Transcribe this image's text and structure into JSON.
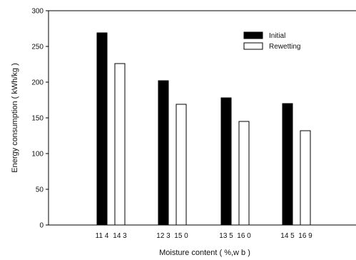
{
  "chart_data": {
    "type": "bar",
    "categories": [
      "11.4  14.3",
      "12.3  15.0",
      "13.5  16.0",
      "14.5  16.9"
    ],
    "category_labels_left": [
      "11 4",
      "12 3",
      "13 5",
      "14 5"
    ],
    "category_labels_right": [
      "14 3",
      "15 0",
      "16 0",
      "16 9"
    ],
    "series": [
      {
        "name": "Initial",
        "values": [
          269,
          202,
          178,
          170
        ],
        "color": "#000000"
      },
      {
        "name": "Rewetting",
        "values": [
          226,
          169,
          145,
          132
        ],
        "color": "#ffffff"
      }
    ],
    "title": "",
    "xlabel": "Moisture content ( %,w b )",
    "ylabel": "Energy consumption ( kWh/kg )",
    "ylim": [
      0,
      300
    ],
    "yticks": [
      "0",
      "50",
      "100",
      "150",
      "200",
      "250",
      "300"
    ],
    "grid": false,
    "legend_position": "top-right"
  }
}
